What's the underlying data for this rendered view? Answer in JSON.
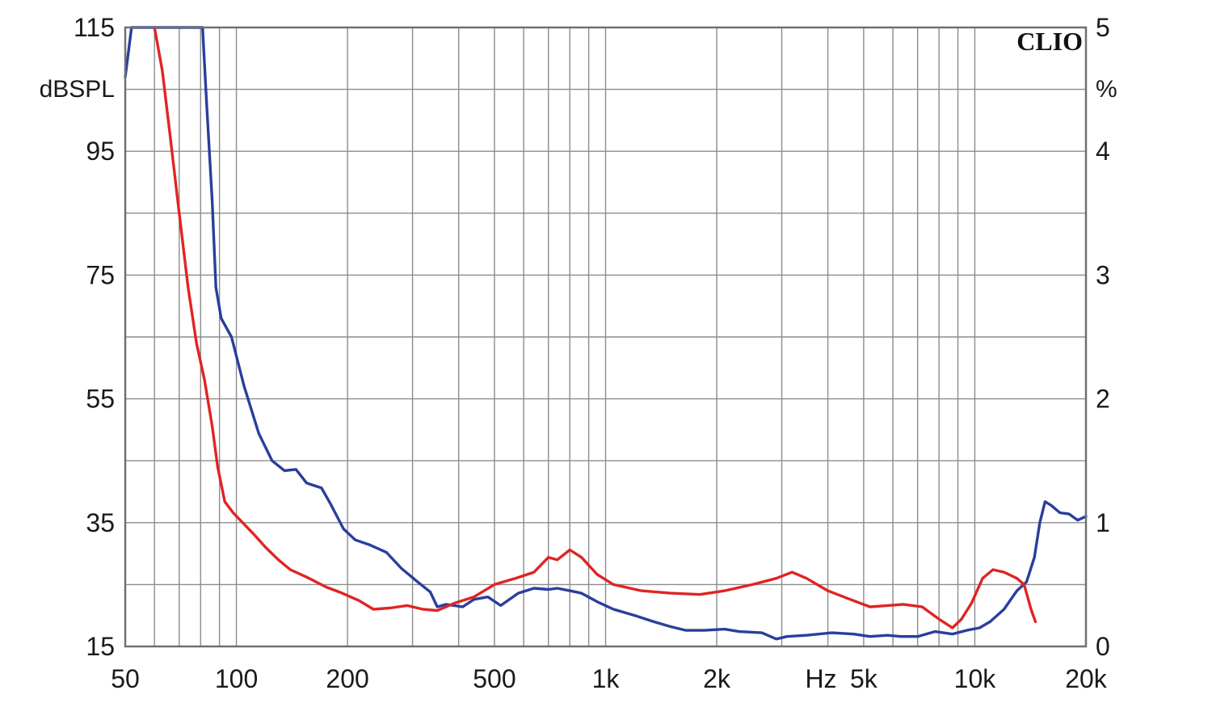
{
  "chart_data": {
    "type": "line",
    "title": "",
    "brand_label": "CLIO",
    "left_axis": {
      "unit": "dBSPL",
      "range": [
        15,
        115
      ],
      "ticks": [
        "115",
        "95",
        "75",
        "55",
        "35",
        "15"
      ],
      "tick_values": [
        115,
        95,
        75,
        55,
        35,
        15
      ]
    },
    "right_axis": {
      "unit": "%",
      "range": [
        0,
        5
      ],
      "ticks": [
        "5",
        "4",
        "3",
        "2",
        "1",
        "0"
      ],
      "tick_values": [
        5,
        4,
        3,
        2,
        1,
        0
      ]
    },
    "x_axis": {
      "unit": "Hz",
      "scale": "log",
      "range": [
        50,
        20000
      ],
      "ticks": [
        "50",
        "100",
        "200",
        "500",
        "1k",
        "2k",
        "5k",
        "10k",
        "20k"
      ],
      "tick_values": [
        50,
        100,
        200,
        500,
        1000,
        2000,
        5000,
        10000,
        20000
      ]
    },
    "grid": true,
    "colors": {
      "blue": "#2a3f9c",
      "red": "#e02424",
      "grid": "#8c8c8c",
      "frame": "#707070"
    },
    "series": [
      {
        "color": "blue",
        "axis": "percent",
        "points": [
          [
            50,
            4.6
          ],
          [
            52,
            5.0
          ],
          [
            81,
            5.0
          ],
          [
            83,
            4.4
          ],
          [
            86,
            3.6
          ],
          [
            88,
            2.9
          ],
          [
            91,
            2.65
          ],
          [
            97,
            2.5
          ],
          [
            105,
            2.1
          ],
          [
            115,
            1.72
          ],
          [
            125,
            1.5
          ],
          [
            135,
            1.42
          ],
          [
            145,
            1.43
          ],
          [
            155,
            1.32
          ],
          [
            170,
            1.28
          ],
          [
            180,
            1.15
          ],
          [
            195,
            0.95
          ],
          [
            210,
            0.86
          ],
          [
            230,
            0.82
          ],
          [
            255,
            0.76
          ],
          [
            280,
            0.63
          ],
          [
            310,
            0.52
          ],
          [
            335,
            0.44
          ],
          [
            350,
            0.32
          ],
          [
            370,
            0.34
          ],
          [
            410,
            0.32
          ],
          [
            440,
            0.38
          ],
          [
            480,
            0.4
          ],
          [
            520,
            0.33
          ],
          [
            580,
            0.43
          ],
          [
            640,
            0.47
          ],
          [
            700,
            0.46
          ],
          [
            740,
            0.47
          ],
          [
            800,
            0.45
          ],
          [
            860,
            0.43
          ],
          [
            950,
            0.36
          ],
          [
            1050,
            0.3
          ],
          [
            1200,
            0.25
          ],
          [
            1350,
            0.2
          ],
          [
            1500,
            0.16
          ],
          [
            1650,
            0.13
          ],
          [
            1850,
            0.13
          ],
          [
            2100,
            0.14
          ],
          [
            2300,
            0.12
          ],
          [
            2650,
            0.11
          ],
          [
            2900,
            0.06
          ],
          [
            3100,
            0.08
          ],
          [
            3500,
            0.09
          ],
          [
            4100,
            0.11
          ],
          [
            4700,
            0.1
          ],
          [
            5200,
            0.08
          ],
          [
            5800,
            0.09
          ],
          [
            6300,
            0.08
          ],
          [
            7000,
            0.08
          ],
          [
            7800,
            0.12
          ],
          [
            8700,
            0.1
          ],
          [
            9500,
            0.13
          ],
          [
            10300,
            0.15
          ],
          [
            11000,
            0.2
          ],
          [
            12000,
            0.3
          ],
          [
            13000,
            0.45
          ],
          [
            13800,
            0.52
          ],
          [
            14500,
            0.72
          ],
          [
            15000,
            1.0
          ],
          [
            15500,
            1.17
          ],
          [
            16100,
            1.14
          ],
          [
            17000,
            1.08
          ],
          [
            18000,
            1.07
          ],
          [
            19000,
            1.02
          ],
          [
            20000,
            1.05
          ]
        ]
      },
      {
        "color": "red",
        "axis": "percent",
        "points": [
          [
            60,
            5.0
          ],
          [
            63,
            4.65
          ],
          [
            66,
            4.15
          ],
          [
            70,
            3.5
          ],
          [
            74,
            2.9
          ],
          [
            78,
            2.45
          ],
          [
            82,
            2.15
          ],
          [
            86,
            1.78
          ],
          [
            89,
            1.45
          ],
          [
            93,
            1.17
          ],
          [
            98,
            1.08
          ],
          [
            104,
            1.0
          ],
          [
            112,
            0.9
          ],
          [
            120,
            0.8
          ],
          [
            130,
            0.7
          ],
          [
            140,
            0.62
          ],
          [
            155,
            0.56
          ],
          [
            175,
            0.48
          ],
          [
            190,
            0.44
          ],
          [
            215,
            0.37
          ],
          [
            235,
            0.3
          ],
          [
            260,
            0.31
          ],
          [
            290,
            0.33
          ],
          [
            320,
            0.3
          ],
          [
            350,
            0.29
          ],
          [
            390,
            0.35
          ],
          [
            440,
            0.4
          ],
          [
            500,
            0.5
          ],
          [
            570,
            0.55
          ],
          [
            640,
            0.6
          ],
          [
            700,
            0.72
          ],
          [
            740,
            0.7
          ],
          [
            800,
            0.78
          ],
          [
            860,
            0.72
          ],
          [
            950,
            0.58
          ],
          [
            1050,
            0.5
          ],
          [
            1250,
            0.45
          ],
          [
            1500,
            0.43
          ],
          [
            1800,
            0.42
          ],
          [
            2100,
            0.45
          ],
          [
            2500,
            0.5
          ],
          [
            2900,
            0.55
          ],
          [
            3200,
            0.6
          ],
          [
            3500,
            0.55
          ],
          [
            4000,
            0.45
          ],
          [
            4600,
            0.38
          ],
          [
            5200,
            0.32
          ],
          [
            5800,
            0.33
          ],
          [
            6400,
            0.34
          ],
          [
            7200,
            0.32
          ],
          [
            8000,
            0.22
          ],
          [
            8700,
            0.15
          ],
          [
            9200,
            0.22
          ],
          [
            9800,
            0.35
          ],
          [
            10500,
            0.55
          ],
          [
            11200,
            0.62
          ],
          [
            12000,
            0.6
          ],
          [
            13000,
            0.55
          ],
          [
            13600,
            0.5
          ],
          [
            14200,
            0.3
          ],
          [
            14600,
            0.2
          ]
        ]
      }
    ]
  }
}
